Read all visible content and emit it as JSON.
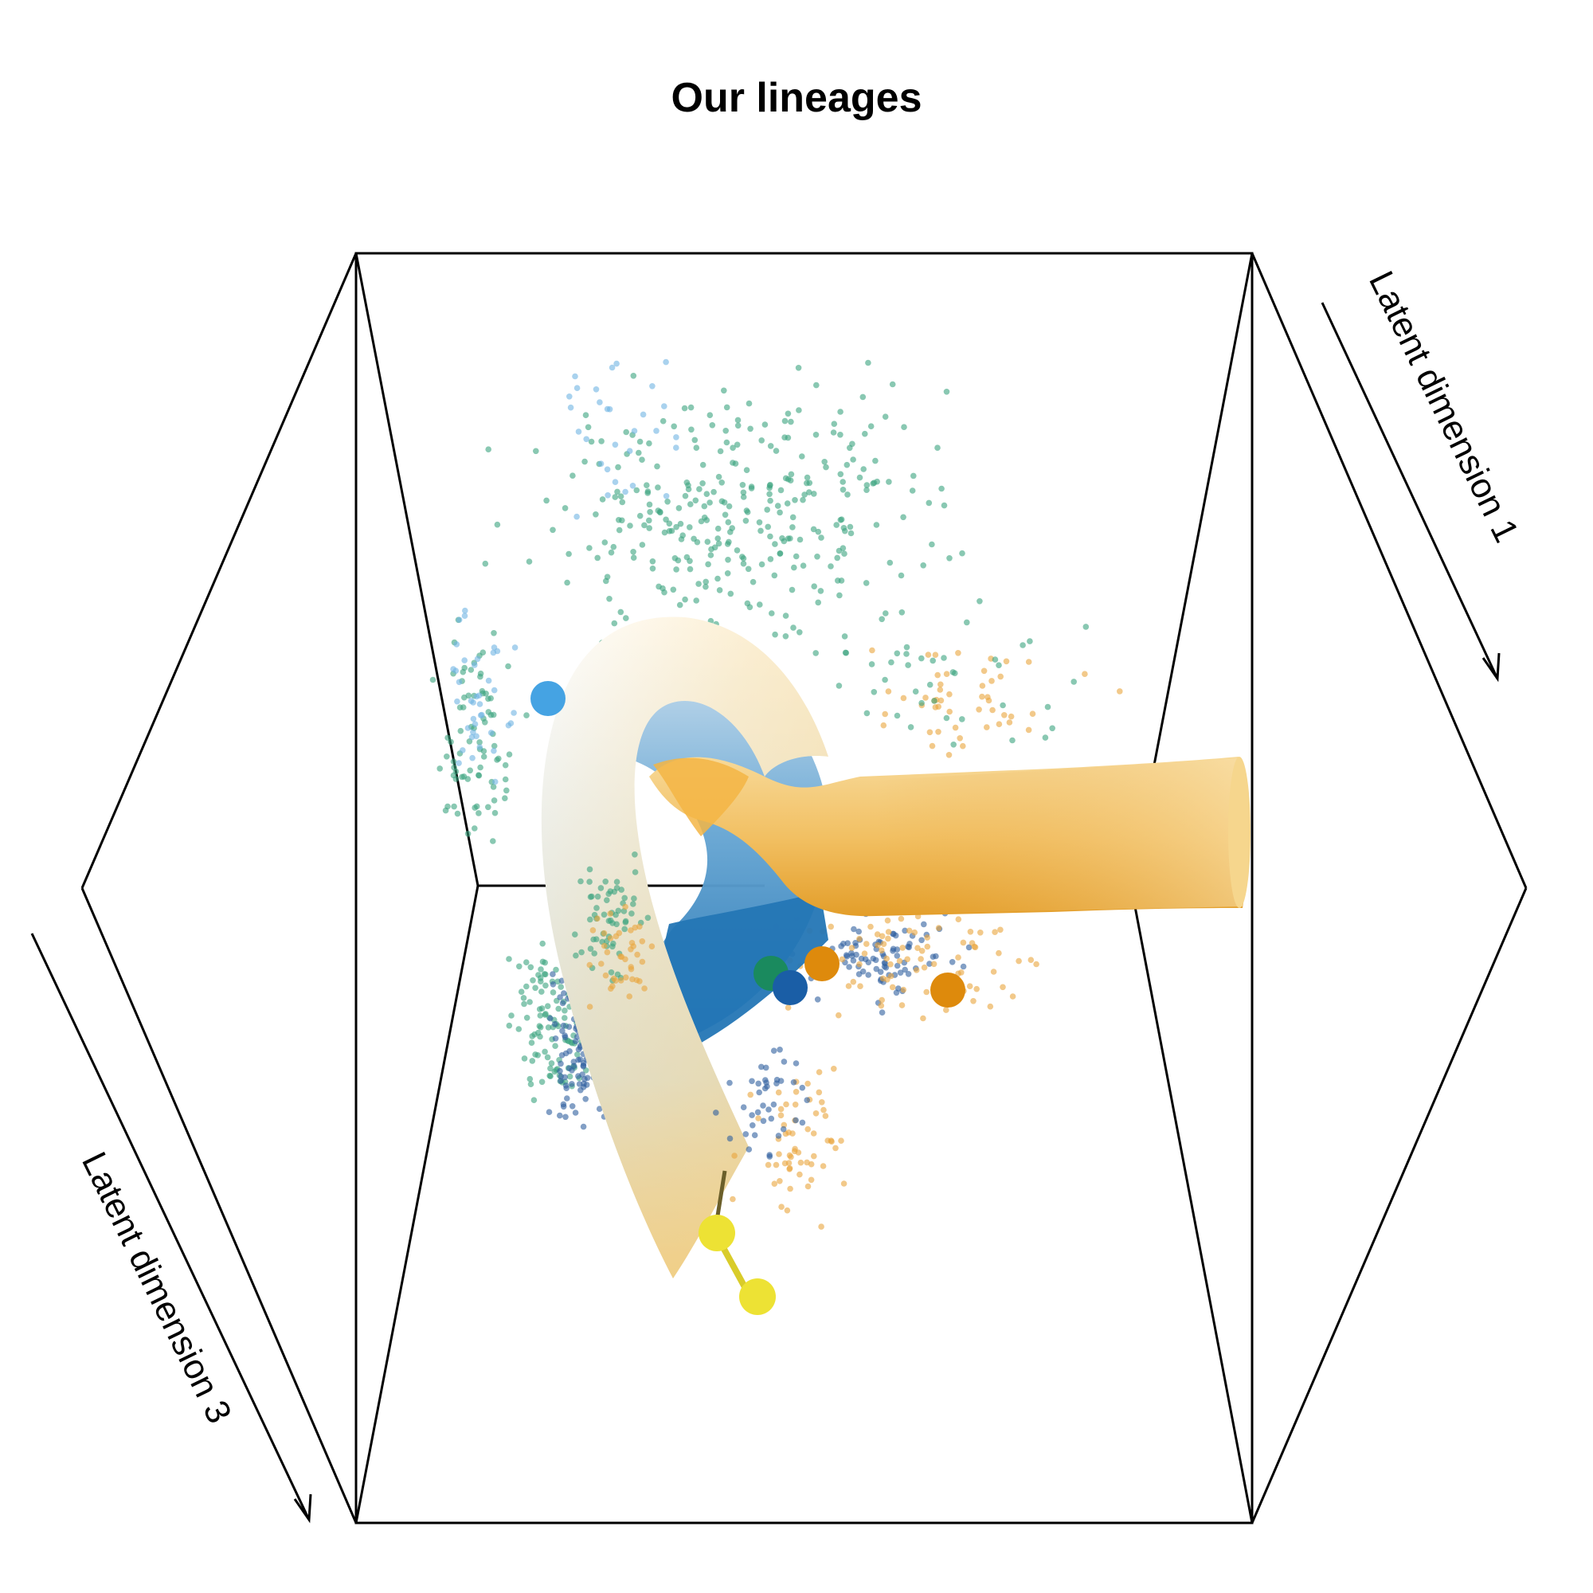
{
  "chart_data": {
    "type": "scatter",
    "projection": "3d",
    "title": "Our lineages",
    "axes": {
      "x_label": "Latent dimension 1",
      "z_label": "Latent dimension 3"
    },
    "box": "perspective cube frame, no tick labels",
    "grid": false,
    "legend": "none",
    "cell_colors": {
      "teal_green": "#3aa37f",
      "light_blue": "#6fb4e3",
      "dark_blue": "#2f5f9e",
      "orange": "#e9a53c"
    },
    "lineage_tubes": [
      {
        "from_color": "#ffffff",
        "to_color": "#f7cf7a",
        "note": "main arch lineage"
      },
      {
        "from_color": "#c9def0",
        "to_color": "#1f74b8",
        "note": "blue lineage loop"
      },
      {
        "from_color": "#f3b544",
        "to_color": "#f6d68d",
        "note": "orange horizontal lineage"
      }
    ],
    "centers": [
      {
        "color": "#45a3e3"
      },
      {
        "color": "#1a8a5e"
      },
      {
        "color": "#1a5ea6"
      },
      {
        "color": "#de8a0c"
      },
      {
        "color": "#de8a0c"
      },
      {
        "color": "#ede234"
      },
      {
        "color": "#ede234"
      }
    ],
    "colors": {
      "frame": "#000000",
      "tube_orange": "#f0b44a",
      "tube_blue": "#2a7fbf"
    }
  }
}
